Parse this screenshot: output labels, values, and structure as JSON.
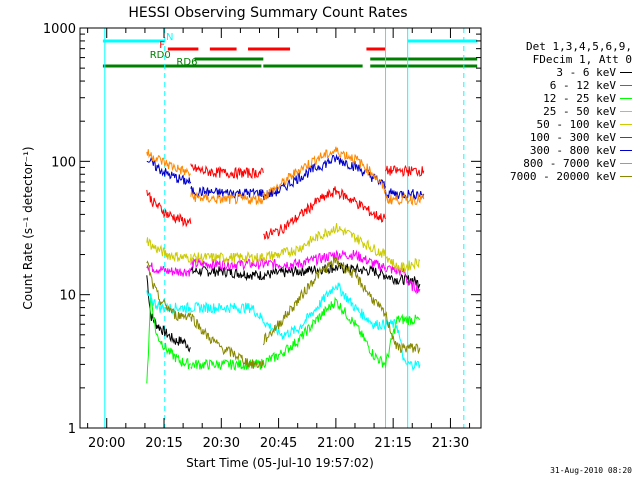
{
  "chart_data": {
    "type": "line",
    "title": "HESSI Observing Summary Count Rates",
    "xlabel": "Start Time (05-Jul-10 19:57:02)",
    "ylabel": "Count Rate (s⁻¹ detector⁻¹)",
    "yscale": "log",
    "ylim": [
      1,
      1000
    ],
    "xlim_minutes": [
      -7,
      98
    ],
    "x_tick_labels": [
      "20:00",
      "20:15",
      "20:30",
      "20:45",
      "21:00",
      "21:15",
      "21:30"
    ],
    "x_tick_minutes": [
      0,
      15,
      30,
      45,
      60,
      75,
      90
    ],
    "y_tick_labels": [
      "1",
      "10",
      "100",
      "1000"
    ],
    "y_ticks": [
      1,
      10,
      100,
      1000
    ],
    "grid": false,
    "legend_placement": "right",
    "legend_header": [
      "Det 1,3,4,5,6,9,",
      "FDecim 1, Att 0"
    ],
    "series": [
      {
        "name": "3 - 6 keV",
        "color": "#000000",
        "segments": [
          {
            "x": [
              10.5,
              11.5,
              13,
              16,
              18,
              20,
              22
            ],
            "y": [
              14,
              7,
              6,
              5,
              4.5,
              4.5,
              4
            ]
          },
          {
            "x": [
              22,
              30,
              40,
              50,
              60,
              70,
              73
            ],
            "y": [
              15,
              15,
              14,
              15,
              16,
              15,
              14
            ]
          },
          {
            "x": [
              73,
              76,
              78,
              80,
              82
            ],
            "y": [
              14,
              13,
              13,
              13,
              12
            ]
          }
        ]
      },
      {
        "name": "6 - 12 keV",
        "color": "#ff00ff",
        "segments": [
          {
            "x": [
              10.5,
              12,
              16,
              20,
              22
            ],
            "y": [
              17,
              16,
              15,
              15,
              15
            ]
          },
          {
            "x": [
              22,
              30,
              40,
              50,
              60,
              65,
              70,
              73
            ],
            "y": [
              17,
              17,
              17,
              17,
              20,
              20,
              17,
              16
            ]
          },
          {
            "x": [
              73,
              76,
              78,
              79,
              82
            ],
            "y": [
              16,
              15,
              15,
              12,
              11
            ]
          }
        ]
      },
      {
        "name": "12 - 25 keV",
        "color": "#00ff00",
        "segments": [
          {
            "x": [
              10.5,
              11.5,
              13,
              16,
              19,
              22
            ],
            "y": [
              2,
              10,
              5,
              3.8,
              3.2,
              3
            ]
          },
          {
            "x": [
              22,
              30,
              40,
              45,
              50,
              55,
              60,
              65,
              70,
              73
            ],
            "y": [
              3,
              3,
              3,
              3.5,
              4.5,
              6.5,
              9,
              6,
              3.5,
              3
            ]
          },
          {
            "x": [
              73,
              76,
              78,
              80,
              82
            ],
            "y": [
              3,
              6.5,
              6.5,
              6.5,
              6.5
            ]
          }
        ]
      },
      {
        "name": "25 - 50 keV",
        "color": "#00ffff",
        "segments": [
          {
            "x": [
              10.5,
              12,
              14,
              16,
              18,
              20,
              22
            ],
            "y": [
              10,
              9,
              8,
              8,
              8,
              8,
              8
            ]
          },
          {
            "x": [
              22,
              30,
              38,
              42,
              46,
              50,
              55,
              60,
              65,
              70,
              73
            ],
            "y": [
              8,
              8,
              8,
              6,
              5,
              5.5,
              8,
              12,
              8,
              6,
              6
            ]
          },
          {
            "x": [
              73,
              76,
              78,
              80,
              82
            ],
            "y": [
              6,
              6,
              3,
              3,
              3
            ]
          }
        ]
      },
      {
        "name": "50 - 100 keV",
        "color": "#cccc00",
        "segments": [
          {
            "x": [
              10.5,
              12,
              16,
              20,
              22
            ],
            "y": [
              26,
              23,
              20,
              19,
              19
            ]
          },
          {
            "x": [
              22,
              30,
              40,
              45,
              50,
              55,
              60,
              65,
              70,
              73
            ],
            "y": [
              19,
              19,
              19,
              20,
              22,
              27,
              32,
              27,
              22,
              20
            ]
          },
          {
            "x": [
              73,
              76,
              78,
              80,
              82
            ],
            "y": [
              20,
              16,
              16,
              17,
              18
            ]
          }
        ]
      },
      {
        "name": "100 - 300 keV",
        "color": "#ff0000",
        "segments": [
          {
            "x": [
              10.5,
              12,
              16,
              20,
              22
            ],
            "y": [
              60,
              50,
              40,
              36,
              34
            ]
          },
          {
            "x": [
              22,
              25,
              30,
              35,
              41
            ],
            "y": [
              90,
              85,
              82,
              82,
              82
            ]
          },
          {
            "x": [
              41,
              45,
              50,
              55,
              60,
              65,
              70,
              73
            ],
            "y": [
              28,
              30,
              38,
              50,
              60,
              50,
              40,
              37
            ]
          },
          {
            "x": [
              73,
              76,
              80,
              83
            ],
            "y": [
              85,
              85,
              85,
              85
            ]
          }
        ]
      },
      {
        "name": "300 - 800 keV",
        "color": "#0000cc",
        "segments": [
          {
            "x": [
              10.5,
              12,
              16,
              20,
              22
            ],
            "y": [
              105,
              95,
              80,
              72,
              70
            ]
          },
          {
            "x": [
              22,
              30,
              41
            ],
            "y": [
              60,
              58,
              58
            ]
          },
          {
            "x": [
              41,
              45,
              50,
              55,
              60,
              65,
              70,
              73
            ],
            "y": [
              55,
              60,
              75,
              90,
              105,
              92,
              75,
              65
            ]
          },
          {
            "x": [
              73,
              76,
              80,
              83
            ],
            "y": [
              58,
              57,
              57,
              57
            ]
          }
        ]
      },
      {
        "name": "800 - 7000 keV",
        "color": "#ff8800",
        "segments": [
          {
            "x": [
              10.5,
              12,
              16,
              20,
              22
            ],
            "y": [
              115,
              110,
              95,
              85,
              80
            ]
          },
          {
            "x": [
              22,
              25,
              30,
              41
            ],
            "y": [
              55,
              53,
              52,
              52
            ]
          },
          {
            "x": [
              41,
              45,
              50,
              55,
              60,
              65,
              70,
              73
            ],
            "y": [
              55,
              65,
              85,
              105,
              120,
              105,
              80,
              60
            ]
          },
          {
            "x": [
              73,
              76,
              80,
              83
            ],
            "y": [
              52,
              52,
              52,
              52
            ]
          }
        ]
      },
      {
        "name": "7000 - 20000 keV",
        "color": "#888800",
        "segments": [
          {
            "x": [
              10.5,
              12,
              14,
              16,
              18,
              20,
              22
            ],
            "y": [
              18,
              12,
              9,
              8,
              7,
              7,
              7
            ]
          },
          {
            "x": [
              22,
              26,
              30,
              34,
              38,
              41
            ],
            "y": [
              7,
              5,
              4,
              3.5,
              3,
              3
            ]
          },
          {
            "x": [
              41,
              45,
              50,
              55,
              60,
              65,
              70,
              73
            ],
            "y": [
              4.5,
              6,
              9,
              14,
              18,
              14,
              9,
              7
            ]
          },
          {
            "x": [
              73,
              76,
              78,
              80,
              82
            ],
            "y": [
              7,
              4,
              4,
              4,
              4
            ]
          }
        ]
      }
    ],
    "flag_bars": [
      {
        "label": "N",
        "color": "#00ffff",
        "segments": [
          [
            -1,
            15.2
          ],
          [
            78.8,
            97
          ]
        ]
      },
      {
        "label": "F",
        "color": "#ff0000",
        "segments": [
          [
            16,
            24
          ],
          [
            27,
            34
          ],
          [
            37,
            48
          ],
          [
            68,
            73
          ]
        ]
      },
      {
        "label": "RD0",
        "color": "#008000",
        "segments": [
          [
            23,
            41
          ],
          [
            69,
            97
          ]
        ]
      },
      {
        "label": "RD6",
        "color": "#008000",
        "segments": [
          [
            -1,
            40.5
          ],
          [
            41,
            67
          ],
          [
            69,
            97
          ]
        ]
      }
    ],
    "vertical_markers": {
      "solid_cyan_minutes": [
        -0.5,
        73,
        78.8
      ],
      "dashed_cyan_minutes": [
        15.2,
        93.5
      ]
    }
  },
  "footer_date": "31-Aug-2010 08:20"
}
